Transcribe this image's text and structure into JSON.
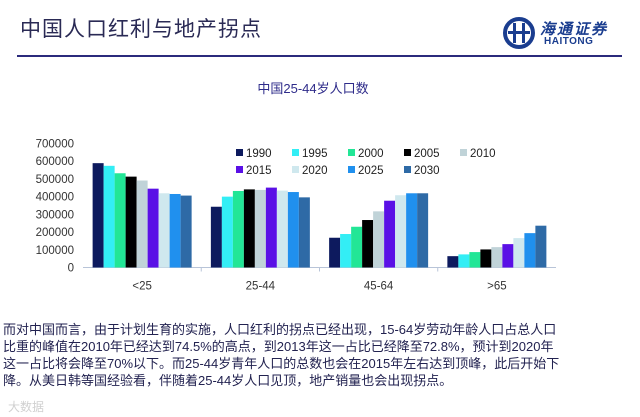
{
  "header": {
    "title": "中国人口红利与地产拐点"
  },
  "logo": {
    "cn": "海通证券",
    "en": "HAITONG",
    "icon": "haitong-logo-icon"
  },
  "chart_data": {
    "type": "bar",
    "title": "中国25-44岁人口数",
    "xlabel": "",
    "ylabel": "",
    "ylim": [
      0,
      700000
    ],
    "yticks": [
      "0",
      "100000",
      "200000",
      "300000",
      "400000",
      "500000",
      "600000",
      "700000"
    ],
    "categories": [
      "<25",
      "25-44",
      "45-64",
      ">65"
    ],
    "legend_position": "top-right",
    "grid": false,
    "series": [
      {
        "name": "1990",
        "color": "#0d1a5e",
        "values": [
          589000,
          343000,
          168000,
          64000
        ]
      },
      {
        "name": "1995",
        "color": "#33eef5",
        "values": [
          574000,
          400000,
          189000,
          74000
        ]
      },
      {
        "name": "2000",
        "color": "#22e696",
        "values": [
          532000,
          432000,
          230000,
          87000
        ]
      },
      {
        "name": "2005",
        "color": "#000000",
        "values": [
          513000,
          441000,
          268000,
          102000
        ]
      },
      {
        "name": "2010",
        "color": "#c0d3d8",
        "values": [
          491000,
          438000,
          317000,
          115000
        ]
      },
      {
        "name": "2015",
        "color": "#5a10e6",
        "values": [
          445000,
          451000,
          377000,
          132000
        ]
      },
      {
        "name": "2020",
        "color": "#cfe8ee",
        "values": [
          419000,
          434000,
          408000,
          166000
        ]
      },
      {
        "name": "2025",
        "color": "#2090ee",
        "values": [
          415000,
          426000,
          419000,
          194000
        ]
      },
      {
        "name": "2030",
        "color": "#2e6aa6",
        "values": [
          406000,
          396000,
          419000,
          236000
        ]
      }
    ]
  },
  "paragraph": {
    "lines": [
      "而对中国而言，由于计划生育的实施，人口红利的拐点已经出现，15-64岁劳动年龄人口占总人口",
      "比重的峰值在2010年已经达到74.5%的高点，到2013年这一占比已经降至72.8%，预计到2020年",
      "这一占比将会降至70%以下。而25-44岁青年人口的总数也会在2015年左右达到顶峰，此后开始下",
      "降。从美日韩等国经验看，伴随着25-44岁人口见顶，地产销量也会出现拐点。"
    ]
  },
  "watermark": "大数据"
}
